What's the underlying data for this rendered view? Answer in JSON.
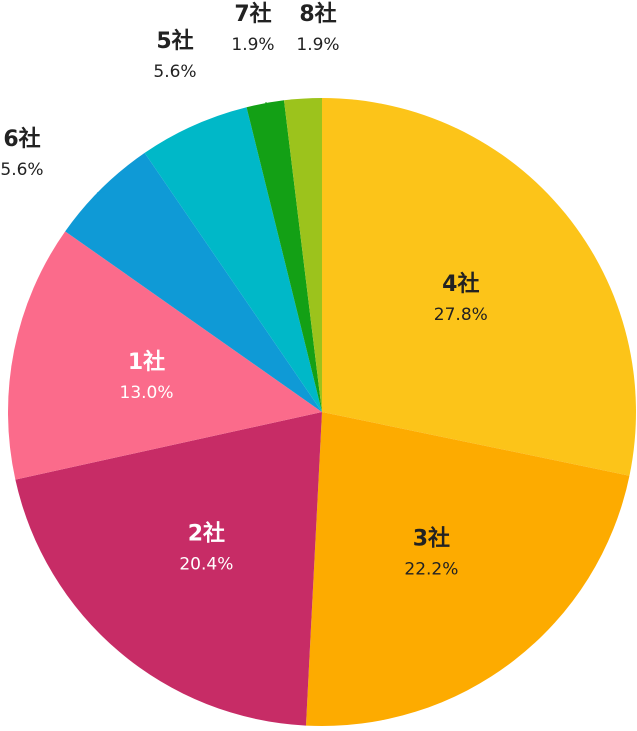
{
  "chart_data": {
    "type": "pie",
    "categories": [
      "4社",
      "3社",
      "2社",
      "1社",
      "6社",
      "5社",
      "7社",
      "8社"
    ],
    "values": [
      27.8,
      22.2,
      20.4,
      13.0,
      5.6,
      5.6,
      1.9,
      1.9
    ],
    "value_labels": [
      "27.8%",
      "22.2%",
      "20.4%",
      "13.0%",
      "5.6%",
      "5.6%",
      "1.9%",
      "1.9%"
    ],
    "colors": [
      "#fcc419",
      "#fdab00",
      "#c72c66",
      "#fb6b8b",
      "#0f9ad6",
      "#00b8c8",
      "#13a015",
      "#9cc31c"
    ]
  }
}
